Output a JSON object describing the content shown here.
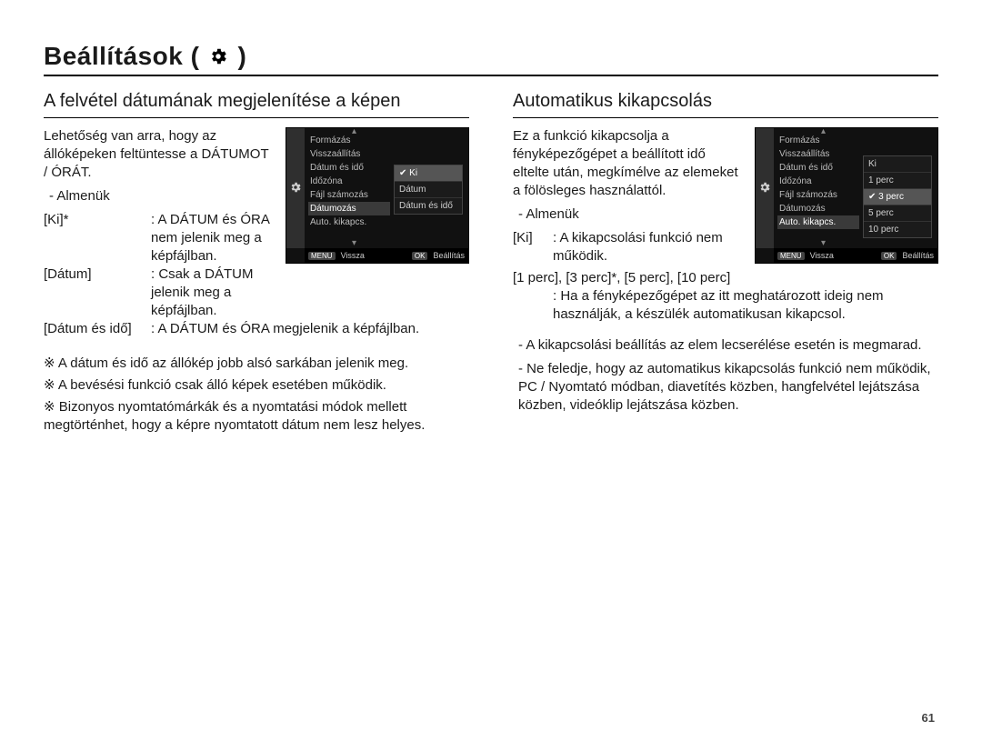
{
  "title": "Beállítások (",
  "title_close": ")",
  "page_number": "61",
  "left": {
    "heading": "A felvétel dátumának megjelenítése a képen",
    "intro": "Lehetőség van arra, hogy az állóképeken feltüntesse a DÁTUMOT / ÓRÁT.",
    "sub": "Almenük",
    "defs": [
      {
        "k": "[Ki]*",
        "v": ": A DÁTUM és ÓRA nem jelenik meg a képfájlban."
      },
      {
        "k": "[Dátum]",
        "v": ": Csak a DÁTUM jelenik meg a képfájlban."
      },
      {
        "k": "[Dátum és idő]",
        "v": ": A DÁTUM és ÓRA megjelenik a képfájlban."
      }
    ],
    "notes": [
      "A dátum és idő az állókép jobb alsó sarkában jelenik meg.",
      "A bevésési funkció csak álló képek esetében működik.",
      "Bizonyos nyomtatómárkák és a nyomtatási módok mellett megtörténhet, hogy a képre nyomtatott dátum nem lesz helyes."
    ],
    "cam": {
      "menu": [
        "Formázás",
        "Visszaállítás",
        "Dátum és idő",
        "Időzóna",
        "Fájl számozás",
        "Dátumozás",
        "Auto. kikapcs."
      ],
      "menu_sel_index": 5,
      "panel": [
        "Ki",
        "Dátum",
        "Dátum és idő"
      ],
      "panel_sel_index": 0,
      "back": "Vissza",
      "set": "Beállítás",
      "menu_tag": "MENU",
      "ok_tag": "OK"
    }
  },
  "right": {
    "heading": "Automatikus kikapcsolás",
    "intro": "Ez a funkció kikapcsolja a fényképezőgépet a beállított idő eltelte után, megkímélve az elemeket a fölösleges használattól.",
    "sub": "Almenük",
    "def_ki_k": "[Ki]",
    "def_ki_v": ": A kikapcsolási funkció nem működik.",
    "def_times": "[1 perc], [3 perc]*, [5 perc], [10 perc]",
    "def_times_v": ": Ha a fényképezőgépet az itt meghatározott ideig nem használják, a készülék automatikusan kikapcsol.",
    "bullets": [
      "A kikapcsolási beállítás az elem lecserélése esetén is megmarad.",
      "Ne feledje, hogy az automatikus kikapcsolás funkció nem működik, PC / Nyomtató módban, diavetítés közben, hangfelvétel lejátszása közben, videóklip lejátszása közben."
    ],
    "cam": {
      "menu": [
        "Formázás",
        "Visszaállítás",
        "Dátum és idő",
        "Időzóna",
        "Fájl számozás",
        "Dátumozás",
        "Auto. kikapcs."
      ],
      "menu_sel_index": 6,
      "panel": [
        "Ki",
        "1 perc",
        "3 perc",
        "5 perc",
        "10 perc"
      ],
      "panel_sel_index": 2,
      "back": "Vissza",
      "set": "Beállítás",
      "menu_tag": "MENU",
      "ok_tag": "OK"
    }
  }
}
